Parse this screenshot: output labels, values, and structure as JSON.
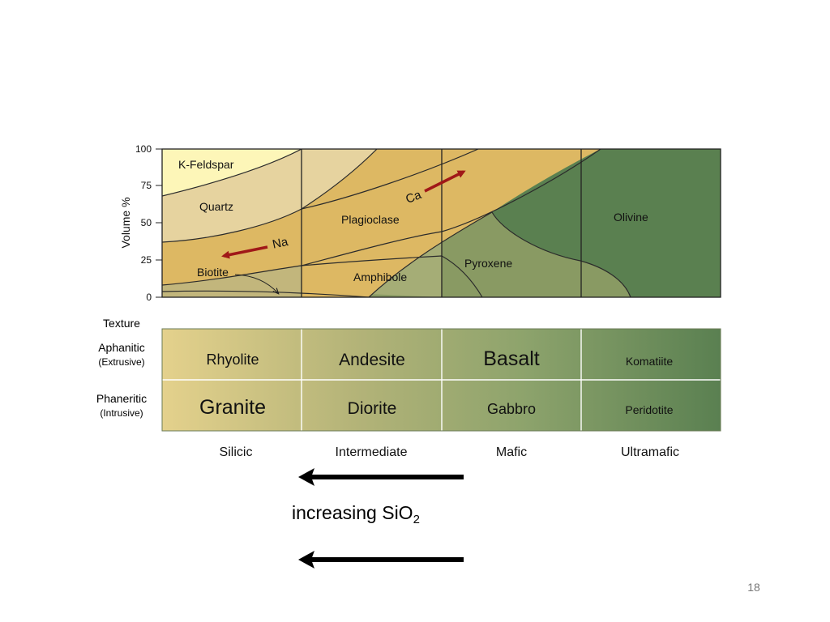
{
  "diagram": {
    "y_axis": {
      "label": "Volume %",
      "ticks": [
        "100",
        "75",
        "50",
        "25",
        "0"
      ]
    },
    "minerals": {
      "kfeldspar": "K-Feldspar",
      "quartz": "Quartz",
      "biotite": "Biotite",
      "plagioclase": "Plagioclase",
      "amphibole": "Amphibole",
      "pyroxene": "Pyroxene",
      "olivine": "Olivine",
      "na": "Na",
      "ca": "Ca"
    },
    "colors": {
      "kfeldspar": "#fdf6b8",
      "quartz": "#e6d39f",
      "plagioclase": "#ddb863",
      "amphibole": "#a5ad76",
      "pyroxene": "#899a63",
      "olivine": "#5a8050",
      "arrow": "#a01818"
    },
    "texture": {
      "header": "Texture",
      "rows": [
        {
          "name": "Aphanitic",
          "sub": "(Extrusive)",
          "rocks": [
            "Rhyolite",
            "Andesite",
            "Basalt",
            "Komatiite"
          ]
        },
        {
          "name": "Phaneritic",
          "sub": "(Intrusive)",
          "rocks": [
            "Granite",
            "Diorite",
            "Gabbro",
            "Peridotite"
          ]
        }
      ]
    },
    "categories": [
      "Silicic",
      "Intermediate",
      "Mafic",
      "Ultramafic"
    ]
  },
  "caption": {
    "text": "increasing SiO",
    "subscript": "2"
  },
  "page_number": "18"
}
